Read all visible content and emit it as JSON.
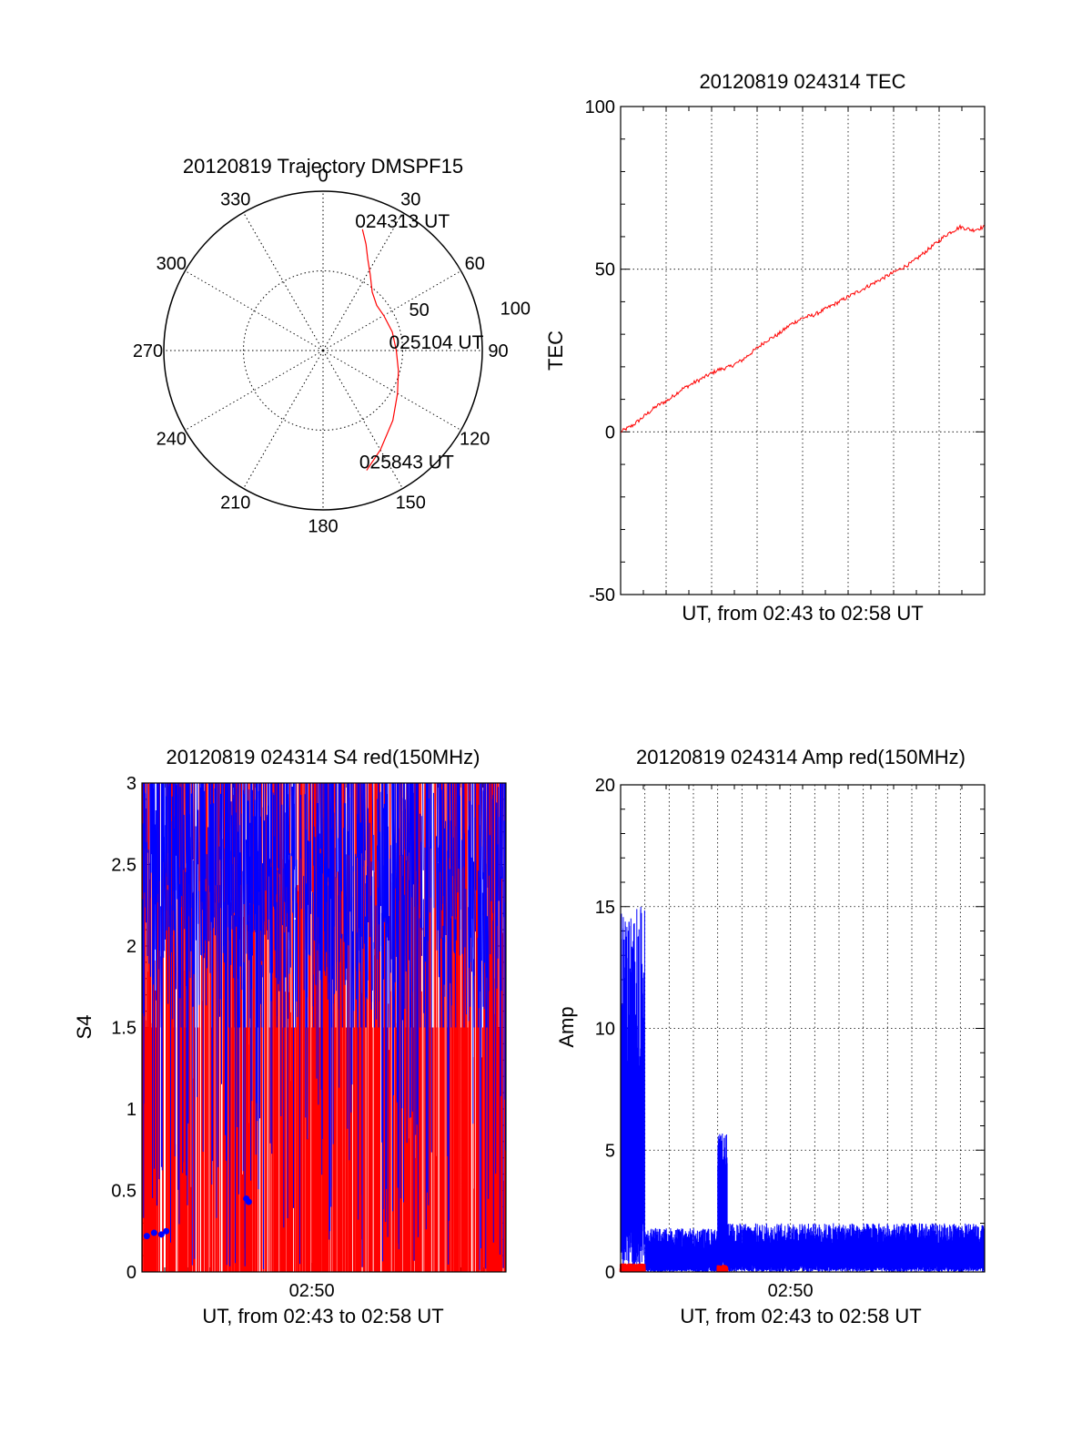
{
  "chart_data": [
    {
      "id": "trajectory",
      "type": "polar",
      "title": "20120819 Trajectory DMSPF15",
      "angle_labels": [
        "0",
        "30",
        "60",
        "90",
        "120",
        "150",
        "180",
        "210",
        "240",
        "270",
        "300",
        "330"
      ],
      "radial_labels": [
        "50",
        "100"
      ],
      "radial_range": [
        0,
        100
      ],
      "grid": true,
      "series": [
        {
          "color": "#ff0000",
          "points": [
            [
              18,
              80
            ],
            [
              22,
              72
            ],
            [
              26,
              64
            ],
            [
              32,
              56
            ],
            [
              40,
              48
            ],
            [
              50,
              44
            ],
            [
              60,
              44
            ],
            [
              75,
              45
            ],
            [
              90,
              46
            ],
            [
              105,
              49
            ],
            [
              120,
              54
            ],
            [
              135,
              62
            ],
            [
              150,
              72
            ],
            [
              160,
              80
            ]
          ]
        }
      ],
      "annotations": [
        {
          "text": "024313 UT",
          "az": 18,
          "r": 80
        },
        {
          "text": "025104 UT",
          "az": 90,
          "r": 46
        },
        {
          "text": "025843 UT",
          "az": 160,
          "r": 80
        }
      ]
    },
    {
      "id": "tec",
      "type": "line",
      "title": "20120819 024314 TEC",
      "xlabel": "UT, from 02:43 to 02:58 UT",
      "ylabel": "TEC",
      "xlim": [
        0,
        15
      ],
      "ylim": [
        -50,
        100
      ],
      "yticks": [
        -50,
        0,
        50,
        100
      ],
      "xticks": [],
      "grid": true,
      "series": [
        {
          "color": "#ff0000",
          "x": [
            0,
            0.5,
            1,
            1.5,
            2,
            2.5,
            3,
            3.5,
            4,
            4.5,
            5,
            5.5,
            6,
            6.5,
            7,
            7.5,
            8,
            8.5,
            9,
            9.5,
            10,
            10.5,
            11,
            11.5,
            12,
            12.5,
            13,
            13.5,
            14,
            14.5,
            15
          ],
          "y": [
            0,
            2,
            5,
            8,
            10,
            13,
            15,
            17,
            19,
            20,
            22,
            25,
            28,
            30,
            33,
            35,
            36,
            38,
            40,
            42,
            44,
            46,
            48,
            50,
            52,
            55,
            58,
            61,
            63,
            62,
            63
          ]
        }
      ]
    },
    {
      "id": "s4",
      "type": "line",
      "title": "20120819 024314 S4 red(150MHz)",
      "xlabel": "UT, from 02:43 to 02:58 UT",
      "ylabel": "S4",
      "xlim": [
        0,
        15
      ],
      "ylim": [
        0,
        3
      ],
      "yticks": [
        0,
        0.5,
        1,
        1.5,
        2,
        2.5,
        3
      ],
      "xticks": [
        {
          "value": 7,
          "label": "02:50"
        }
      ],
      "grid": false,
      "series": [
        {
          "color": "#0000ff",
          "style": "dense-noise",
          "range": [
            0,
            15
          ],
          "low": 1.5,
          "high": 3
        },
        {
          "color": "#ff0000",
          "style": "dense-noise",
          "range": [
            0,
            15
          ],
          "low": 0,
          "high": 3
        }
      ],
      "markers": [
        {
          "color": "#0000ff",
          "x": [
            0.2,
            0.5,
            0.8,
            1.0
          ],
          "y": [
            0.22,
            0.24,
            0.23,
            0.25
          ]
        },
        {
          "color": "#0000ff",
          "x": [
            4.3,
            4.4
          ],
          "y": [
            0.45,
            0.43
          ]
        }
      ]
    },
    {
      "id": "amp",
      "type": "line",
      "title": "20120819 024314 Amp red(150MHz)",
      "xlabel": "UT, from 02:43 to 02:58 UT",
      "ylabel": "Amp",
      "xlim": [
        0,
        15
      ],
      "ylim": [
        0,
        20
      ],
      "yticks": [
        0,
        5,
        10,
        15,
        20
      ],
      "xticks": [
        {
          "value": 7,
          "label": "02:50"
        }
      ],
      "grid": true,
      "series": [
        {
          "color": "#0000ff",
          "segments": [
            {
              "range": [
                0,
                1.0
              ],
              "low": 2.5,
              "high": 15
            },
            {
              "range": [
                1.0,
                4.0
              ],
              "low": 0.2,
              "high": 1.8
            },
            {
              "range": [
                4.0,
                4.4
              ],
              "low": 0.5,
              "high": 5.7
            },
            {
              "range": [
                4.4,
                15
              ],
              "low": 0.3,
              "high": 2.0
            }
          ]
        },
        {
          "color": "#ff0000",
          "segments": [
            {
              "range": [
                0,
                1.0
              ],
              "low": 0.0,
              "high": 0.35
            },
            {
              "range": [
                4.0,
                4.4
              ],
              "low": 0.0,
              "high": 0.3
            }
          ]
        }
      ]
    }
  ]
}
